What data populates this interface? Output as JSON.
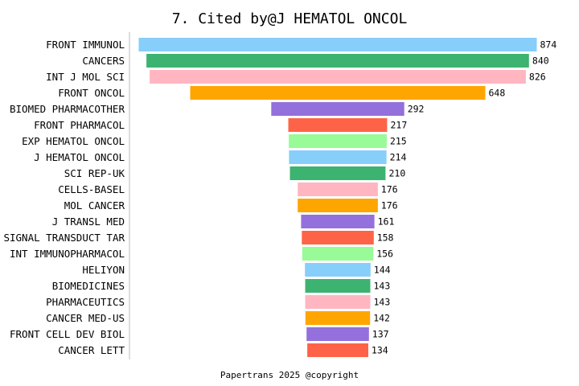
{
  "chart_data": {
    "type": "bar",
    "orientation": "horizontal",
    "title": "7. Cited by@J HEMATOL ONCOL",
    "categories": [
      "FRONT IMMUNOL",
      "CANCERS",
      "INT J MOL SCI",
      "FRONT ONCOL",
      "BIOMED PHARMACOTHER",
      "FRONT PHARMACOL",
      "EXP HEMATOL ONCOL",
      "J HEMATOL ONCOL",
      "SCI REP-UK",
      "CELLS-BASEL",
      "MOL CANCER",
      "J TRANSL MED",
      "SIGNAL TRANSDUCT TAR",
      "INT IMMUNOPHARMACOL",
      "HELIYON",
      "BIOMEDICINES",
      "PHARMACEUTICS",
      "CANCER MED-US",
      "FRONT CELL DEV BIOL",
      "CANCER LETT"
    ],
    "values": [
      874,
      840,
      826,
      648,
      292,
      217,
      215,
      214,
      210,
      176,
      176,
      161,
      158,
      156,
      144,
      143,
      143,
      142,
      137,
      134
    ],
    "colors": [
      "#87CEFA",
      "#3CB371",
      "#FFB6C1",
      "#FFA500",
      "#9370DB",
      "#FF6347",
      "#98FB98",
      "#87CEFA",
      "#3CB371",
      "#FFB6C1",
      "#FFA500",
      "#9370DB",
      "#FF6347",
      "#98FB98",
      "#87CEFA",
      "#3CB371",
      "#FFB6C1",
      "#FFA500",
      "#9370DB",
      "#FF6347"
    ],
    "bar_alignment": "centered",
    "xlim": [
      0,
      874
    ],
    "xlabel": "",
    "ylabel": "",
    "grid": false,
    "legend": "none",
    "footer": "Papertrans 2025 @copyright"
  }
}
